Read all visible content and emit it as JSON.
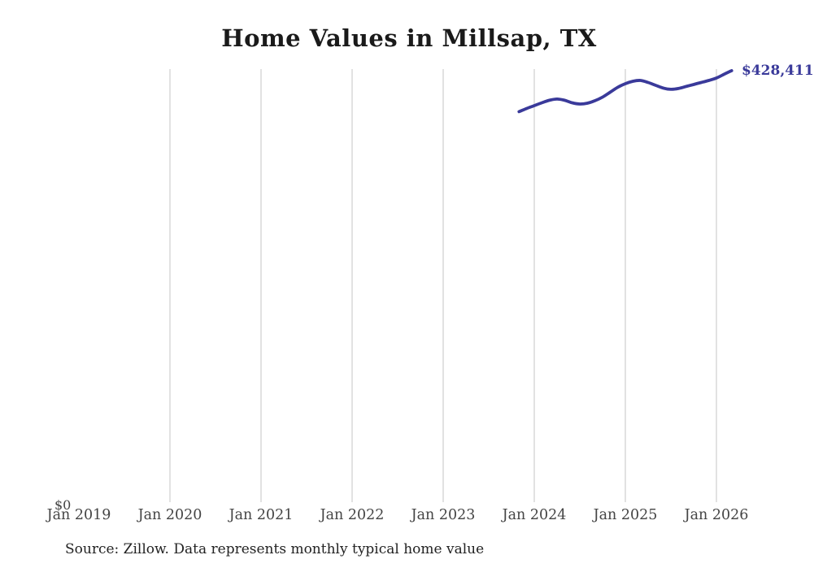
{
  "title": "Home Values in Millsap, TX",
  "source_note": "Source: Zillow. Data represents monthly typical home value",
  "y_zero_label": "$0",
  "latest_value_label": "$428,411",
  "colors": {
    "line": "#3a3a9a",
    "gridline": "#d2d2d2",
    "title": "#1a1a1a",
    "axis_label": "#444444",
    "source": "#222222"
  },
  "chart_data": {
    "type": "line",
    "title": "Home Values in Millsap, TX",
    "xlabel": "",
    "ylabel": "",
    "x_tick_labels": [
      "Jan 2019",
      "Jan 2020",
      "Jan 2021",
      "Jan 2022",
      "Jan 2023",
      "Jan 2024",
      "Jan 2025",
      "Jan 2026"
    ],
    "y_axis_labels": [
      "$0"
    ],
    "ylim": [
      0,
      430000
    ],
    "grid": "vertical gridlines at each January tick from Jan 2020 through Jan 2026; no horizontal gridlines; no visible axis lines",
    "legend_position": "none",
    "end_label": "$428,411",
    "series": [
      {
        "name": "Monthly typical home value",
        "points": [
          {
            "date": "2023-11",
            "value": 387700
          },
          {
            "date": "2023-12",
            "value": 390900
          },
          {
            "date": "2024-01",
            "value": 393700
          },
          {
            "date": "2024-02",
            "value": 396500
          },
          {
            "date": "2024-03",
            "value": 399000
          },
          {
            "date": "2024-04",
            "value": 400200
          },
          {
            "date": "2024-05",
            "value": 399000
          },
          {
            "date": "2024-06",
            "value": 396500
          },
          {
            "date": "2024-07",
            "value": 395300
          },
          {
            "date": "2024-08",
            "value": 396100
          },
          {
            "date": "2024-09",
            "value": 398600
          },
          {
            "date": "2024-10",
            "value": 402200
          },
          {
            "date": "2024-11",
            "value": 407000
          },
          {
            "date": "2024-12",
            "value": 411900
          },
          {
            "date": "2025-01",
            "value": 415500
          },
          {
            "date": "2025-02",
            "value": 417900
          },
          {
            "date": "2025-03",
            "value": 418700
          },
          {
            "date": "2025-04",
            "value": 416700
          },
          {
            "date": "2025-05",
            "value": 413900
          },
          {
            "date": "2025-06",
            "value": 411100
          },
          {
            "date": "2025-07",
            "value": 409900
          },
          {
            "date": "2025-08",
            "value": 410700
          },
          {
            "date": "2025-09",
            "value": 412700
          },
          {
            "date": "2025-10",
            "value": 414700
          },
          {
            "date": "2025-11",
            "value": 416700
          },
          {
            "date": "2025-12",
            "value": 418700
          },
          {
            "date": "2026-01",
            "value": 421100
          },
          {
            "date": "2026-02",
            "value": 424800
          },
          {
            "date": "2026-03",
            "value": 428411
          }
        ]
      }
    ]
  }
}
